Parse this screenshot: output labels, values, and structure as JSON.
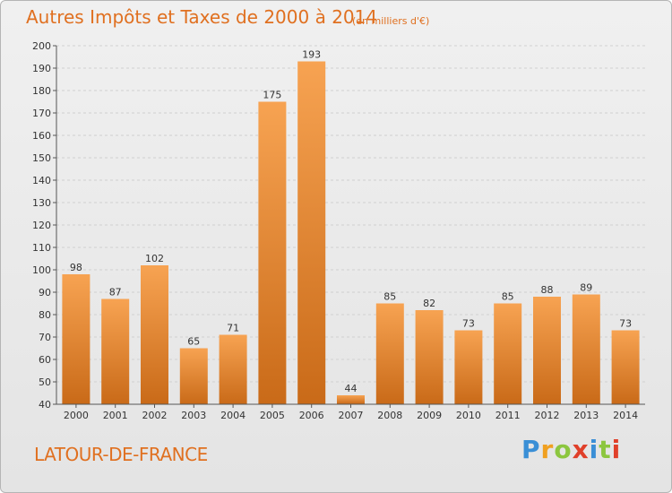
{
  "title": "Autres Impôts et Taxes de 2000 à 2014",
  "subtitle": "(en milliers d'€)",
  "commune": "LATOUR-DE-FRANCE",
  "brand": {
    "letters": [
      "P",
      "r",
      "o",
      "x",
      "i",
      "t",
      "i"
    ],
    "colors": [
      "#3a8fd6",
      "#f0a020",
      "#8cc63f",
      "#e0402a",
      "#3a8fd6",
      "#8cc63f",
      "#e0402a"
    ]
  },
  "colors": {
    "title": "#e07020",
    "bar_light": "#f7a352",
    "bar_dark": "#c96a18",
    "grid": "#d0d0d0",
    "axis": "#555555"
  },
  "chart_data": {
    "type": "bar",
    "categories": [
      "2000",
      "2001",
      "2002",
      "2003",
      "2004",
      "2005",
      "2006",
      "2007",
      "2008",
      "2009",
      "2010",
      "2011",
      "2012",
      "2013",
      "2014"
    ],
    "values": [
      98,
      87,
      102,
      65,
      71,
      175,
      193,
      44,
      85,
      82,
      73,
      85,
      88,
      89,
      73
    ],
    "ylim": [
      40,
      200
    ],
    "yticks": [
      40,
      50,
      60,
      70,
      80,
      90,
      100,
      110,
      120,
      130,
      140,
      150,
      160,
      170,
      180,
      190,
      200
    ],
    "grid": true
  }
}
